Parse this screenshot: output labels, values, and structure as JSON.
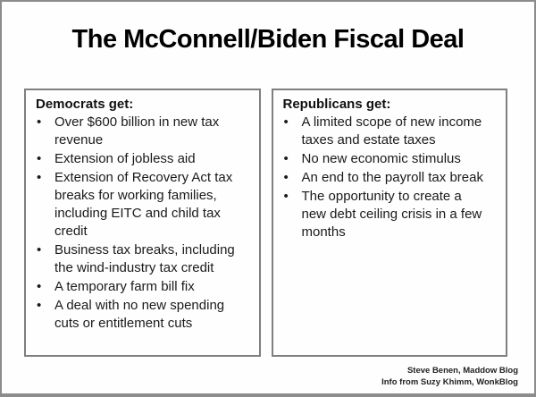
{
  "title": "The McConnell/Biden Fiscal Deal",
  "bullet_char": "•",
  "panels": [
    {
      "heading": "Democrats get:",
      "items": [
        "Over $600 billion in new tax\nrevenue",
        "Extension of jobless aid",
        "Extension of Recovery Act tax\nbreaks for working families,\nincluding EITC and child tax\ncredit",
        "Business tax breaks, including\nthe wind-industry tax credit",
        "A temporary farm bill fix",
        "A deal with no new spending\ncuts or entitlement cuts"
      ]
    },
    {
      "heading": "Republicans get:",
      "items": [
        "A limited scope of new income\ntaxes and estate taxes",
        "No new economic stimulus",
        "An end to the payroll tax break",
        "The opportunity to create a\nnew debt ceiling crisis in a few\nmonths"
      ]
    }
  ],
  "attribution": {
    "line1": "Steve Benen, Maddow Blog",
    "line2": "Info from Suzy Khimm, WonkBlog"
  },
  "colors": {
    "outer_border": "#8c8c8c",
    "panel_border": "#7f7f7f",
    "text": "#1a1a1a",
    "background": "#fefefe"
  }
}
